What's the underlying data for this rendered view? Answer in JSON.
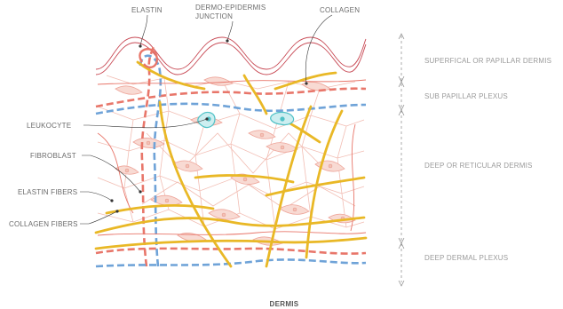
{
  "top_labels": {
    "elastin": "ELASTIN",
    "dermo_epidermis_line1": "DERMO-EPIDERMIS",
    "dermo_epidermis_line2": "JUNCTION",
    "collagen": "COLLAGEN"
  },
  "left_labels": {
    "leukocyte": "LEUKOCYTE",
    "fibroblast": "FIBROBLAST",
    "elastin_fibers": "ELASTIN FIBERS",
    "collagen_fibers": "COLLAGEN FIBERS"
  },
  "right_labels": {
    "superficial": "SUPERFICAL OR PAPILLAR DERMIS",
    "sub_papillar": "SUB PAPILLAR PLEXUS",
    "deep_reticular": "DEEP OR RETICULAR DERMIS",
    "deep_plexus": "DEEP DERMAL PLEXUS"
  },
  "caption": "DERMIS",
  "colors": {
    "elastin": "#e8766a",
    "collagen": "#e9b826",
    "vessel_blue": "#6fa3d8",
    "cell_fill": "#f7d6cf",
    "cell_stroke": "#eea59a",
    "mesh": "#f0b4aa",
    "leukocyte": "#4fc1c6",
    "junction": "#c84a55",
    "text": "#6b6b6b"
  }
}
